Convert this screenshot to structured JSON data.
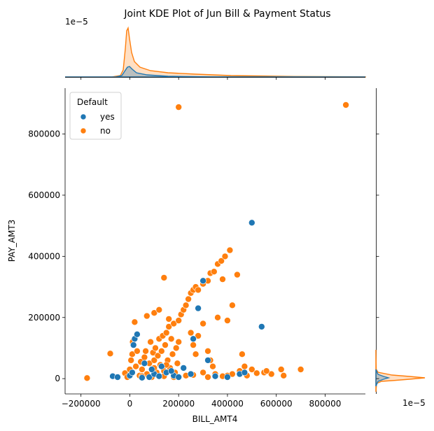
{
  "chart_data": {
    "type": "scatter",
    "title": "Joint KDE Plot of Jun Bill & Payment Status",
    "xlabel": "BILL_AMT4",
    "ylabel": "PAY_AMT3",
    "xlim": [
      -265000,
      965000
    ],
    "ylim": [
      -50000,
      950000
    ],
    "x_ticks": [
      -200000,
      0,
      200000,
      400000,
      600000,
      800000
    ],
    "x_tick_labels": [
      "−200000",
      "0",
      "200000",
      "400000",
      "600000",
      "800000"
    ],
    "y_ticks": [
      0,
      200000,
      400000,
      600000,
      800000
    ],
    "y_tick_labels": [
      "0",
      "200000",
      "400000",
      "600000",
      "800000"
    ],
    "top_marginal_offset_label": "1e−5",
    "right_marginal_offset_label": "1e−5",
    "legend": {
      "title": "Default",
      "placement": "top-left",
      "entries": [
        "yes",
        "no"
      ]
    },
    "grid": false,
    "colors": {
      "yes": "#1f77b4",
      "no": "#ff7f0e"
    },
    "series": [
      {
        "name": "no",
        "points": [
          [
            -175000,
            2000
          ],
          [
            -80000,
            82000
          ],
          [
            -20000,
            18000
          ],
          [
            -10000,
            5000
          ],
          [
            0,
            30000
          ],
          [
            5000,
            60000
          ],
          [
            10000,
            80000
          ],
          [
            12000,
            120000
          ],
          [
            20000,
            185000
          ],
          [
            25000,
            40000
          ],
          [
            30000,
            90000
          ],
          [
            40000,
            10000
          ],
          [
            45000,
            55000
          ],
          [
            50000,
            30000
          ],
          [
            60000,
            70000
          ],
          [
            65000,
            90000
          ],
          [
            70000,
            15000
          ],
          [
            80000,
            50000
          ],
          [
            85000,
            120000
          ],
          [
            90000,
            30000
          ],
          [
            95000,
            85000
          ],
          [
            100000,
            60000
          ],
          [
            105000,
            100000
          ],
          [
            110000,
            20000
          ],
          [
            115000,
            75000
          ],
          [
            120000,
            130000
          ],
          [
            125000,
            45000
          ],
          [
            130000,
            90000
          ],
          [
            135000,
            140000
          ],
          [
            140000,
            25000
          ],
          [
            145000,
            110000
          ],
          [
            150000,
            150000
          ],
          [
            155000,
            60000
          ],
          [
            160000,
            170000
          ],
          [
            165000,
            35000
          ],
          [
            170000,
            130000
          ],
          [
            175000,
            80000
          ],
          [
            180000,
            180000
          ],
          [
            185000,
            20000
          ],
          [
            190000,
            100000
          ],
          [
            195000,
            50000
          ],
          [
            200000,
            190000
          ],
          [
            210000,
            210000
          ],
          [
            220000,
            225000
          ],
          [
            230000,
            240000
          ],
          [
            240000,
            260000
          ],
          [
            250000,
            280000
          ],
          [
            260000,
            290000
          ],
          [
            270000,
            300000
          ],
          [
            280000,
            290000
          ],
          [
            300000,
            310000
          ],
          [
            320000,
            320000
          ],
          [
            330000,
            345000
          ],
          [
            345000,
            350000
          ],
          [
            360000,
            375000
          ],
          [
            375000,
            385000
          ],
          [
            390000,
            400000
          ],
          [
            410000,
            420000
          ],
          [
            140000,
            330000
          ],
          [
            100000,
            215000
          ],
          [
            120000,
            225000
          ],
          [
            70000,
            205000
          ],
          [
            160000,
            195000
          ],
          [
            200000,
            120000
          ],
          [
            250000,
            150000
          ],
          [
            260000,
            110000
          ],
          [
            270000,
            80000
          ],
          [
            280000,
            140000
          ],
          [
            300000,
            180000
          ],
          [
            320000,
            90000
          ],
          [
            330000,
            60000
          ],
          [
            340000,
            40000
          ],
          [
            360000,
            200000
          ],
          [
            380000,
            325000
          ],
          [
            400000,
            190000
          ],
          [
            420000,
            240000
          ],
          [
            440000,
            340000
          ],
          [
            460000,
            80000
          ],
          [
            470000,
            40000
          ],
          [
            300000,
            20000
          ],
          [
            350000,
            15000
          ],
          [
            400000,
            10000
          ],
          [
            450000,
            25000
          ],
          [
            500000,
            30000
          ],
          [
            550000,
            20000
          ],
          [
            580000,
            15000
          ],
          [
            620000,
            30000
          ],
          [
            630000,
            10000
          ],
          [
            700000,
            30000
          ],
          [
            200000,
            888000
          ],
          [
            885000,
            895000
          ],
          [
            230000,
            10000
          ],
          [
            180000,
            5000
          ],
          [
            140000,
            8000
          ],
          [
            90000,
            5000
          ],
          [
            50000,
            8000
          ],
          [
            260000,
            12000
          ],
          [
            320000,
            5000
          ],
          [
            380000,
            8000
          ],
          [
            420000,
            15000
          ],
          [
            480000,
            10000
          ],
          [
            520000,
            18000
          ],
          [
            560000,
            25000
          ],
          [
            100000,
            35000
          ],
          [
            150000,
            45000
          ]
        ]
      },
      {
        "name": "yes",
        "points": [
          [
            -70000,
            8000
          ],
          [
            -50000,
            5000
          ],
          [
            0,
            10000
          ],
          [
            10000,
            20000
          ],
          [
            15000,
            110000
          ],
          [
            20000,
            130000
          ],
          [
            30000,
            145000
          ],
          [
            50000,
            3000
          ],
          [
            80000,
            5000
          ],
          [
            100000,
            15000
          ],
          [
            120000,
            8000
          ],
          [
            150000,
            20000
          ],
          [
            180000,
            10000
          ],
          [
            200000,
            5000
          ],
          [
            250000,
            15000
          ],
          [
            260000,
            130000
          ],
          [
            280000,
            230000
          ],
          [
            300000,
            320000
          ],
          [
            320000,
            60000
          ],
          [
            350000,
            8000
          ],
          [
            400000,
            5000
          ],
          [
            450000,
            15000
          ],
          [
            470000,
            20000
          ],
          [
            500000,
            510000
          ],
          [
            540000,
            170000
          ],
          [
            60000,
            50000
          ],
          [
            90000,
            30000
          ],
          [
            130000,
            40000
          ],
          [
            170000,
            25000
          ],
          [
            220000,
            35000
          ]
        ]
      }
    ]
  }
}
